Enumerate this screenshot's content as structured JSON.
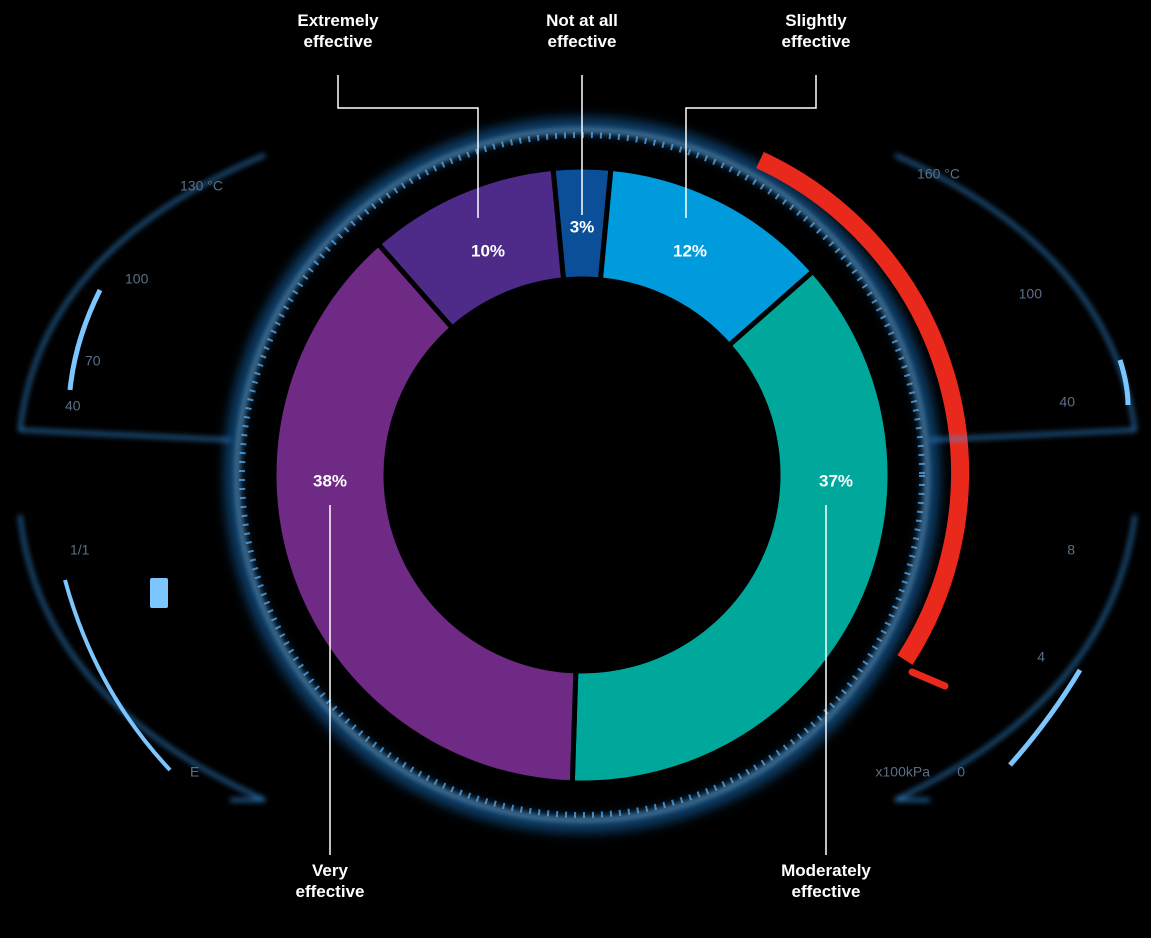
{
  "chart_data": {
    "type": "donut",
    "categories": [
      "Not at all effective",
      "Slightly effective",
      "Moderately effective",
      "Very effective",
      "Extremely effective"
    ],
    "values": [
      3,
      12,
      37,
      38,
      10
    ],
    "value_labels": [
      "3%",
      "12%",
      "37%",
      "38%",
      "10%"
    ],
    "colors": [
      "#0b4f99",
      "#009bdc",
      "#00a89c",
      "#6e2a84",
      "#4e2b89"
    ]
  },
  "gauge_labels": [
    "130 °C",
    "100",
    "70",
    "40",
    "1/1",
    "E",
    "160 °C",
    "100",
    "40",
    "8",
    "4",
    "0",
    "x100kPa"
  ]
}
